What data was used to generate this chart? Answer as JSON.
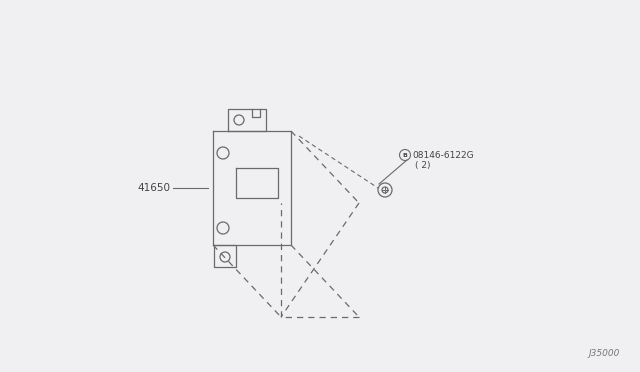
{
  "bg_color": "#f0f0f2",
  "part_number_main": "41650",
  "part_number_bolt": "08146-6122G",
  "part_number_bolt_qty": "( 2)",
  "diagram_code": "J35000",
  "fig_label": "B",
  "line_color": "#6a6a6a",
  "text_color": "#444444"
}
